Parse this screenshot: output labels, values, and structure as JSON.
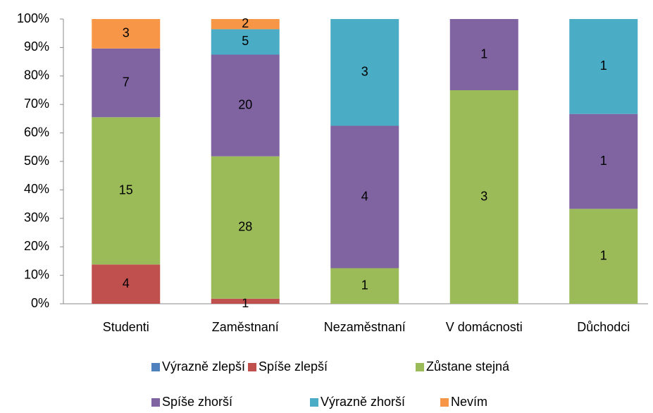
{
  "chart_data": {
    "type": "bar",
    "stacking": "percent",
    "categories": [
      "Studenti",
      "Zaměstnaní",
      "Nezaměstnaní",
      "V domácnosti",
      "Důchodci"
    ],
    "series": [
      {
        "name": "Výrazně zlepší",
        "color": "#4f81bd",
        "values": [
          null,
          null,
          null,
          null,
          null
        ]
      },
      {
        "name": "Spíše zlepší",
        "color": "#c0504d",
        "values": [
          4,
          1,
          null,
          null,
          null
        ]
      },
      {
        "name": "Zůstane stejná",
        "color": "#9bbb59",
        "values": [
          15,
          28,
          1,
          3,
          1
        ]
      },
      {
        "name": "Spíše zhorší",
        "color": "#8064a2",
        "values": [
          7,
          20,
          4,
          1,
          1
        ]
      },
      {
        "name": "Výrazně zhorší",
        "color": "#4bacc6",
        "values": [
          null,
          5,
          3,
          null,
          1
        ]
      },
      {
        "name": "Nevím",
        "color": "#f79646",
        "values": [
          3,
          2,
          null,
          null,
          null
        ]
      }
    ],
    "ylim": [
      0,
      100
    ],
    "yticks": [
      {
        "value": 0,
        "label": "0%"
      },
      {
        "value": 10,
        "label": "10%"
      },
      {
        "value": 20,
        "label": "20%"
      },
      {
        "value": 30,
        "label": "30%"
      },
      {
        "value": 40,
        "label": "40%"
      },
      {
        "value": 50,
        "label": "50%"
      },
      {
        "value": 60,
        "label": "60%"
      },
      {
        "value": 70,
        "label": "70%"
      },
      {
        "value": 80,
        "label": "80%"
      },
      {
        "value": 90,
        "label": "90%"
      },
      {
        "value": 100,
        "label": "100%"
      }
    ],
    "grid": false,
    "legend": "bottom"
  }
}
